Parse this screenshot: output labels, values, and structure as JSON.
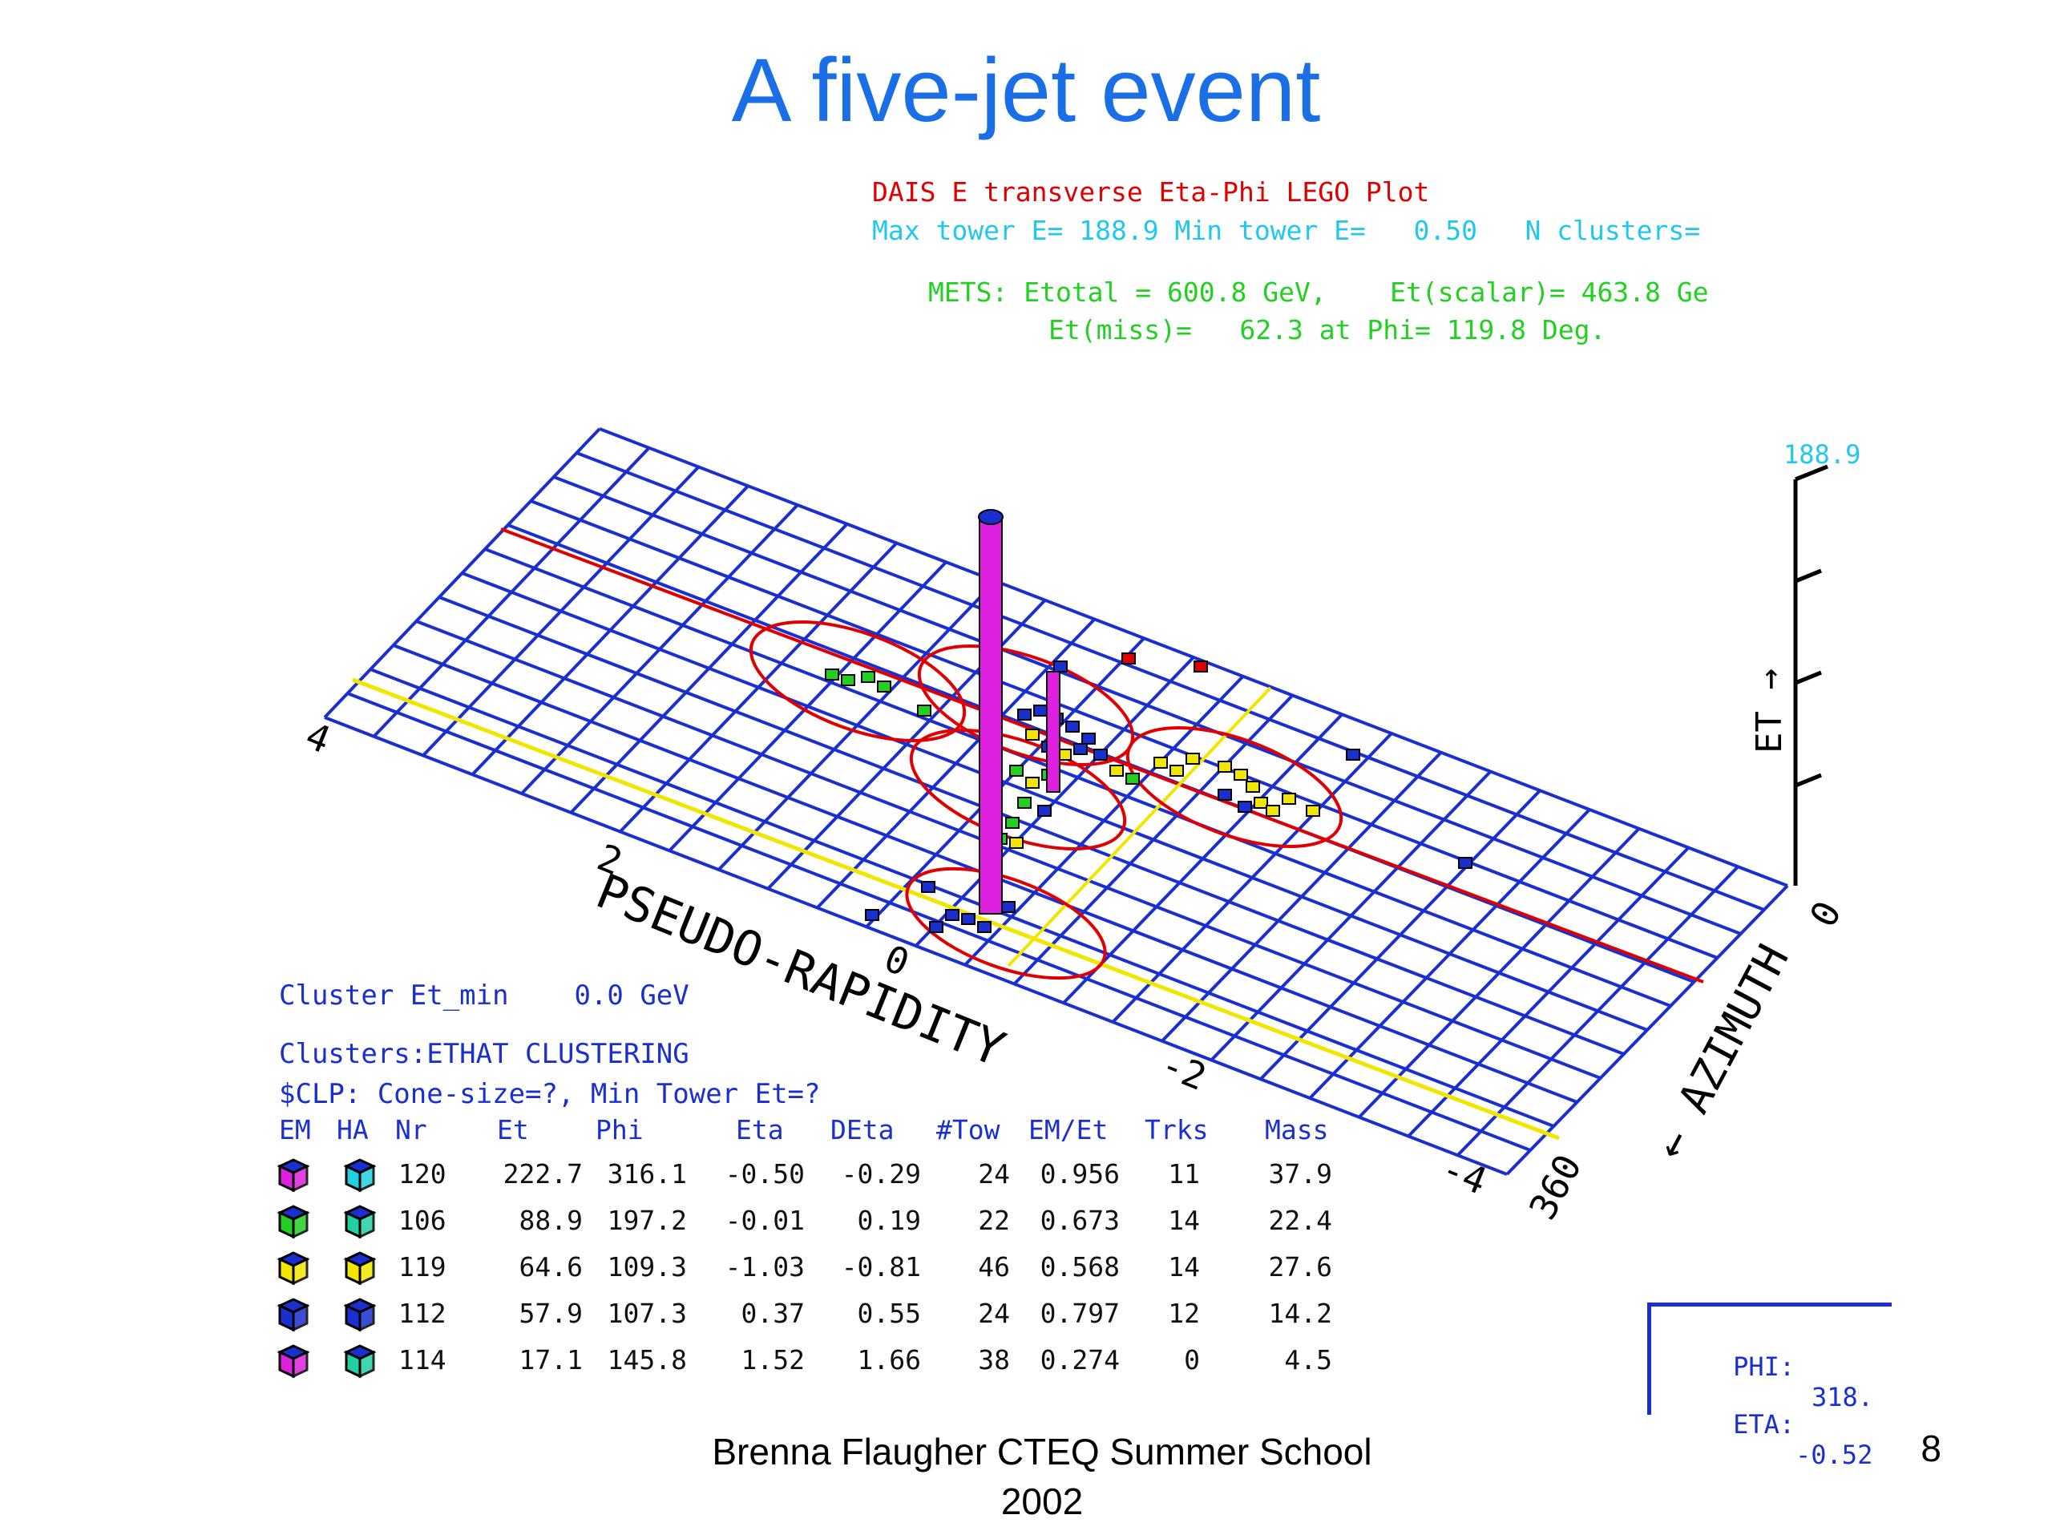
{
  "slide": {
    "title": "A five-jet event",
    "footer": "Brenna Flaugher CTEQ Summer School 2002",
    "page_number": "8"
  },
  "plot": {
    "header": "DAIS E transverse Eta-Phi LEGO Plot",
    "max_line": "Max tower E= 188.9 Min tower E=   0.50   N clusters=",
    "mets_line1": "METS: Etotal = 600.8 GeV,    Et(scalar)= 463.8 Ge",
    "mets_line2": "Et(miss)=   62.3 at Phi= 119.8 Deg.",
    "z_max_label": "188.9",
    "z_axis_label": "ET →",
    "eta_axis_label": "PSEUDO-RAPIDITY",
    "phi_axis_label": "← AZIMUTH",
    "eta_ticks": [
      "4",
      "2",
      "0",
      "-2",
      "-4"
    ],
    "phi_ticks": [
      "0",
      "360"
    ],
    "colors": {
      "grid": "#1a2fd0",
      "line_red": "#e00000",
      "line_yellow": "#f2e600",
      "tower_main": "#e020e0",
      "cluster_ellipse": "#e00000"
    }
  },
  "info": {
    "cluster_min": "Cluster Et_min    0.0 GeV",
    "clusters_alg": "Clusters:ETHAT CLUSTERING",
    "clp": "$CLP: Cone-size=?, Min Tower Et=?"
  },
  "table": {
    "columns": [
      "EM",
      "HA",
      "Nr",
      "Et",
      "Phi",
      "Eta",
      "DEta",
      "#Tow",
      "EM/Et",
      "Trks",
      "Mass"
    ],
    "rows": [
      {
        "nr": "120",
        "et": "222.7",
        "phi": "316.1",
        "eta": "-0.50",
        "deta": "-0.29",
        "tow": "24",
        "emet": "0.956",
        "trks": "11",
        "mass": "37.9",
        "em_color": "#e020e0",
        "ha_color": "#20d0e0"
      },
      {
        "nr": "106",
        "et": "88.9",
        "phi": "197.2",
        "eta": "-0.01",
        "deta": "0.19",
        "tow": "22",
        "emet": "0.673",
        "trks": "14",
        "mass": "22.4",
        "em_color": "#21d021",
        "ha_color": "#20d0a0"
      },
      {
        "nr": "119",
        "et": "64.6",
        "phi": "109.3",
        "eta": "-1.03",
        "deta": "-0.81",
        "tow": "46",
        "emet": "0.568",
        "trks": "14",
        "mass": "27.6",
        "em_color": "#f2e600",
        "ha_color": "#f2e600"
      },
      {
        "nr": "112",
        "et": "57.9",
        "phi": "107.3",
        "eta": "0.37",
        "deta": "0.55",
        "tow": "24",
        "emet": "0.797",
        "trks": "12",
        "mass": "14.2",
        "em_color": "#1a2fd0",
        "ha_color": "#1a2fd0"
      },
      {
        "nr": "114",
        "et": "17.1",
        "phi": "145.8",
        "eta": "1.52",
        "deta": "1.66",
        "tow": "38",
        "emet": "0.274",
        "trks": "0",
        "mass": "4.5",
        "em_color": "#e020e0",
        "ha_color": "#20d0a0"
      }
    ]
  },
  "pointer": {
    "phi_label": "PHI:",
    "phi_value": "318.",
    "eta_label": "ETA:",
    "eta_value": "-0.52"
  }
}
